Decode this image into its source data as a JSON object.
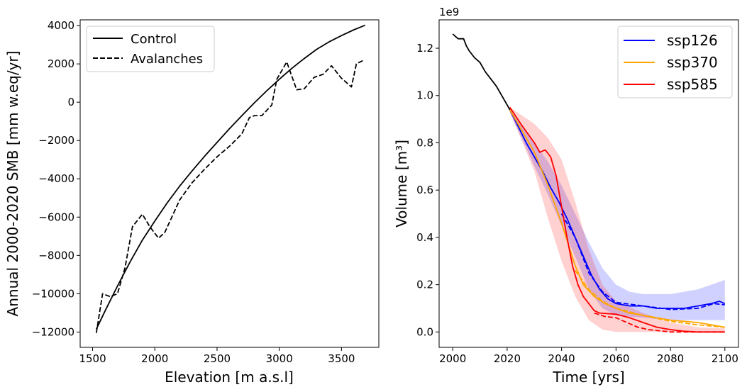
{
  "chart_data": [
    {
      "type": "line",
      "xlabel": "Elevation [m a.s.l]",
      "ylabel": "Annual 2000-2020 SMB [mm w.eq/yr]",
      "xlim": [
        1400,
        3800
      ],
      "ylim": [
        -12800,
        4300
      ],
      "xticks": [
        1500,
        2000,
        2500,
        3000,
        3500
      ],
      "yticks": [
        -12000,
        -10000,
        -8000,
        -6000,
        -4000,
        -2000,
        0,
        2000,
        4000
      ],
      "xtick_labels": [
        "1500",
        "2000",
        "2500",
        "3000",
        "3500"
      ],
      "ytick_labels": [
        "−12000",
        "−10000",
        "−8000",
        "−6000",
        "−4000",
        "−2000",
        "0",
        "2000",
        "4000"
      ],
      "legend": {
        "location": "upper-left",
        "entries": [
          "Control",
          "Avalanches"
        ]
      },
      "series": [
        {
          "name": "Control",
          "color": "#000000",
          "style": "solid",
          "points": [
            [
              1530,
              -11850
            ],
            [
              1600,
              -10900
            ],
            [
              1700,
              -9600
            ],
            [
              1800,
              -8350
            ],
            [
              1900,
              -7200
            ],
            [
              2000,
              -6200
            ],
            [
              2100,
              -5250
            ],
            [
              2200,
              -4380
            ],
            [
              2300,
              -3580
            ],
            [
              2400,
              -2820
            ],
            [
              2500,
              -2100
            ],
            [
              2600,
              -1380
            ],
            [
              2700,
              -700
            ],
            [
              2800,
              -30
            ],
            [
              2900,
              600
            ],
            [
              3000,
              1200
            ],
            [
              3100,
              1760
            ],
            [
              3200,
              2280
            ],
            [
              3300,
              2760
            ],
            [
              3400,
              3150
            ],
            [
              3500,
              3480
            ],
            [
              3600,
              3780
            ],
            [
              3690,
              4020
            ]
          ]
        },
        {
          "name": "Avalanches",
          "color": "#000000",
          "style": "dashed",
          "points": [
            [
              1530,
              -12050
            ],
            [
              1580,
              -10000
            ],
            [
              1640,
              -10150
            ],
            [
              1700,
              -10000
            ],
            [
              1760,
              -8650
            ],
            [
              1820,
              -6500
            ],
            [
              1900,
              -5850
            ],
            [
              1960,
              -6500
            ],
            [
              2030,
              -7100
            ],
            [
              2080,
              -6800
            ],
            [
              2200,
              -5100
            ],
            [
              2300,
              -4200
            ],
            [
              2400,
              -3500
            ],
            [
              2500,
              -2850
            ],
            [
              2600,
              -2300
            ],
            [
              2700,
              -1650
            ],
            [
              2760,
              -800
            ],
            [
              2800,
              -700
            ],
            [
              2860,
              -700
            ],
            [
              2940,
              -150
            ],
            [
              2980,
              1200
            ],
            [
              3060,
              2100
            ],
            [
              3140,
              650
            ],
            [
              3200,
              700
            ],
            [
              3280,
              1300
            ],
            [
              3350,
              1450
            ],
            [
              3420,
              1900
            ],
            [
              3500,
              1250
            ],
            [
              3580,
              800
            ],
            [
              3620,
              2000
            ],
            [
              3680,
              2200
            ]
          ]
        }
      ]
    },
    {
      "type": "line",
      "xlabel": "Time [yrs]",
      "ylabel": "Volume [m³]",
      "offset_label": "1e9",
      "xlim": [
        1995,
        2105
      ],
      "ylim": [
        -0.065,
        1.32
      ],
      "xticks": [
        2000,
        2020,
        2040,
        2060,
        2080,
        2100
      ],
      "yticks": [
        0.0,
        0.2,
        0.4,
        0.6,
        0.8,
        1.0,
        1.2
      ],
      "xtick_labels": [
        "2000",
        "2020",
        "2040",
        "2060",
        "2080",
        "2100"
      ],
      "ytick_labels": [
        "0.0",
        "0.2",
        "0.4",
        "0.6",
        "0.8",
        "1.0",
        "1.2"
      ],
      "legend": {
        "location": "upper-right",
        "entries": [
          "ssp126",
          "ssp370",
          "ssp585"
        ]
      },
      "colors": {
        "historical": "#000000",
        "ssp126": "#0000ff",
        "ssp370": "#ffa500",
        "ssp585": "#ff0000"
      },
      "historical": {
        "name": "historical",
        "points": [
          [
            2000,
            1.26
          ],
          [
            2001,
            1.25
          ],
          [
            2002,
            1.24
          ],
          [
            2004,
            1.24
          ],
          [
            2005,
            1.21
          ],
          [
            2006,
            1.19
          ],
          [
            2008,
            1.16
          ],
          [
            2010,
            1.14
          ],
          [
            2012,
            1.1
          ],
          [
            2014,
            1.07
          ],
          [
            2016,
            1.04
          ],
          [
            2018,
            1.0
          ],
          [
            2019,
            0.98
          ],
          [
            2020,
            0.96
          ],
          [
            2021,
            0.94
          ]
        ]
      },
      "series": [
        {
          "name": "ssp126",
          "solid": [
            [
              2021,
              0.94
            ],
            [
              2024,
              0.87
            ],
            [
              2027,
              0.8
            ],
            [
              2030,
              0.74
            ],
            [
              2033,
              0.68
            ],
            [
              2036,
              0.61
            ],
            [
              2039,
              0.55
            ],
            [
              2042,
              0.48
            ],
            [
              2045,
              0.4
            ],
            [
              2048,
              0.32
            ],
            [
              2051,
              0.24
            ],
            [
              2054,
              0.18
            ],
            [
              2057,
              0.14
            ],
            [
              2060,
              0.12
            ],
            [
              2065,
              0.11
            ],
            [
              2070,
              0.11
            ],
            [
              2075,
              0.1
            ],
            [
              2080,
              0.1
            ],
            [
              2085,
              0.1
            ],
            [
              2090,
              0.11
            ],
            [
              2095,
              0.12
            ],
            [
              2098,
              0.13
            ],
            [
              2100,
              0.12
            ]
          ],
          "dashed": [
            [
              2040,
              0.5
            ],
            [
              2045,
              0.4
            ],
            [
              2050,
              0.25
            ],
            [
              2055,
              0.17
            ],
            [
              2060,
              0.125
            ],
            [
              2070,
              0.11
            ],
            [
              2080,
              0.095
            ],
            [
              2090,
              0.1
            ],
            [
              2096,
              0.12
            ],
            [
              2100,
              0.115
            ]
          ],
          "band_upper": [
            [
              2021,
              0.95
            ],
            [
              2030,
              0.8
            ],
            [
              2035,
              0.72
            ],
            [
              2040,
              0.62
            ],
            [
              2045,
              0.5
            ],
            [
              2050,
              0.38
            ],
            [
              2055,
              0.27
            ],
            [
              2060,
              0.2
            ],
            [
              2065,
              0.17
            ],
            [
              2070,
              0.16
            ],
            [
              2080,
              0.16
            ],
            [
              2090,
              0.18
            ],
            [
              2100,
              0.22
            ]
          ],
          "band_lower": [
            [
              2021,
              0.93
            ],
            [
              2030,
              0.7
            ],
            [
              2035,
              0.58
            ],
            [
              2040,
              0.45
            ],
            [
              2045,
              0.32
            ],
            [
              2050,
              0.18
            ],
            [
              2055,
              0.1
            ],
            [
              2060,
              0.07
            ],
            [
              2070,
              0.06
            ],
            [
              2080,
              0.05
            ],
            [
              2090,
              0.05
            ],
            [
              2100,
              0.05
            ]
          ]
        },
        {
          "name": "ssp370",
          "solid": [
            [
              2021,
              0.94
            ],
            [
              2025,
              0.86
            ],
            [
              2030,
              0.76
            ],
            [
              2035,
              0.62
            ],
            [
              2040,
              0.46
            ],
            [
              2045,
              0.28
            ],
            [
              2048,
              0.2
            ],
            [
              2052,
              0.15
            ],
            [
              2056,
              0.12
            ],
            [
              2060,
              0.1
            ],
            [
              2065,
              0.08
            ],
            [
              2070,
              0.07
            ],
            [
              2075,
              0.06
            ],
            [
              2080,
              0.05
            ],
            [
              2085,
              0.045
            ],
            [
              2090,
              0.04
            ],
            [
              2095,
              0.03
            ],
            [
              2100,
              0.02
            ]
          ],
          "dashed": [
            [
              2045,
              0.26
            ],
            [
              2050,
              0.18
            ],
            [
              2055,
              0.13
            ],
            [
              2060,
              0.1
            ],
            [
              2070,
              0.07
            ],
            [
              2080,
              0.045
            ],
            [
              2090,
              0.03
            ],
            [
              2100,
              0.02
            ]
          ]
        },
        {
          "name": "ssp585",
          "solid": [
            [
              2021,
              0.95
            ],
            [
              2025,
              0.88
            ],
            [
              2030,
              0.8
            ],
            [
              2032,
              0.76
            ],
            [
              2034,
              0.77
            ],
            [
              2036,
              0.74
            ],
            [
              2038,
              0.66
            ],
            [
              2040,
              0.53
            ],
            [
              2042,
              0.4
            ],
            [
              2044,
              0.28
            ],
            [
              2046,
              0.2
            ],
            [
              2048,
              0.15
            ],
            [
              2050,
              0.12
            ],
            [
              2052,
              0.09
            ],
            [
              2054,
              0.08
            ],
            [
              2060,
              0.075
            ],
            [
              2065,
              0.06
            ],
            [
              2070,
              0.04
            ],
            [
              2075,
              0.02
            ],
            [
              2080,
              0.01
            ],
            [
              2085,
              0.003
            ],
            [
              2090,
              0.0
            ],
            [
              2100,
              0.0
            ]
          ],
          "dashed": [
            [
              2052,
              0.08
            ],
            [
              2056,
              0.065
            ],
            [
              2060,
              0.06
            ],
            [
              2064,
              0.04
            ],
            [
              2068,
              0.02
            ],
            [
              2072,
              0.01
            ],
            [
              2080,
              0.0
            ],
            [
              2100,
              0.0
            ]
          ],
          "band_upper": [
            [
              2021,
              0.95
            ],
            [
              2030,
              0.88
            ],
            [
              2035,
              0.82
            ],
            [
              2040,
              0.73
            ],
            [
              2045,
              0.55
            ],
            [
              2050,
              0.35
            ],
            [
              2055,
              0.2
            ],
            [
              2060,
              0.13
            ],
            [
              2070,
              0.08
            ],
            [
              2080,
              0.04
            ],
            [
              2090,
              0.02
            ],
            [
              2100,
              0.015
            ]
          ],
          "band_lower": [
            [
              2021,
              0.93
            ],
            [
              2030,
              0.68
            ],
            [
              2035,
              0.48
            ],
            [
              2040,
              0.3
            ],
            [
              2045,
              0.15
            ],
            [
              2050,
              0.05
            ],
            [
              2055,
              0.01
            ],
            [
              2060,
              0.0
            ],
            [
              2100,
              0.0
            ]
          ]
        }
      ]
    }
  ]
}
